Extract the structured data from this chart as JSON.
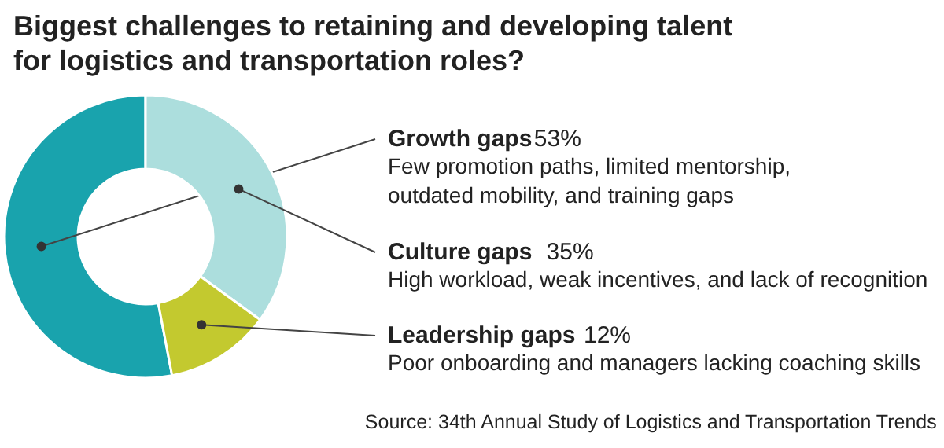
{
  "chart_data": {
    "type": "donut",
    "title": "Biggest challenges to retaining and developing talent\nfor logistics and transportation roles?",
    "categories": [
      "Growth gaps",
      "Culture gaps",
      "Leadership gaps"
    ],
    "values": [
      53,
      35,
      12
    ],
    "value_labels": [
      "53%",
      "35%",
      "12%"
    ],
    "colors": [
      "#19a3ad",
      "#acdedd",
      "#c3c92f"
    ],
    "annotations": [
      "Few promotion paths, limited mentorship,\noutdated mobility, and training gaps",
      "High workload, weak incentives, and lack of recognition",
      "Poor onboarding and managers lacking coaching skills",
      "Source: 34th Annual Study of Logistics and Transportation Trends"
    ]
  }
}
